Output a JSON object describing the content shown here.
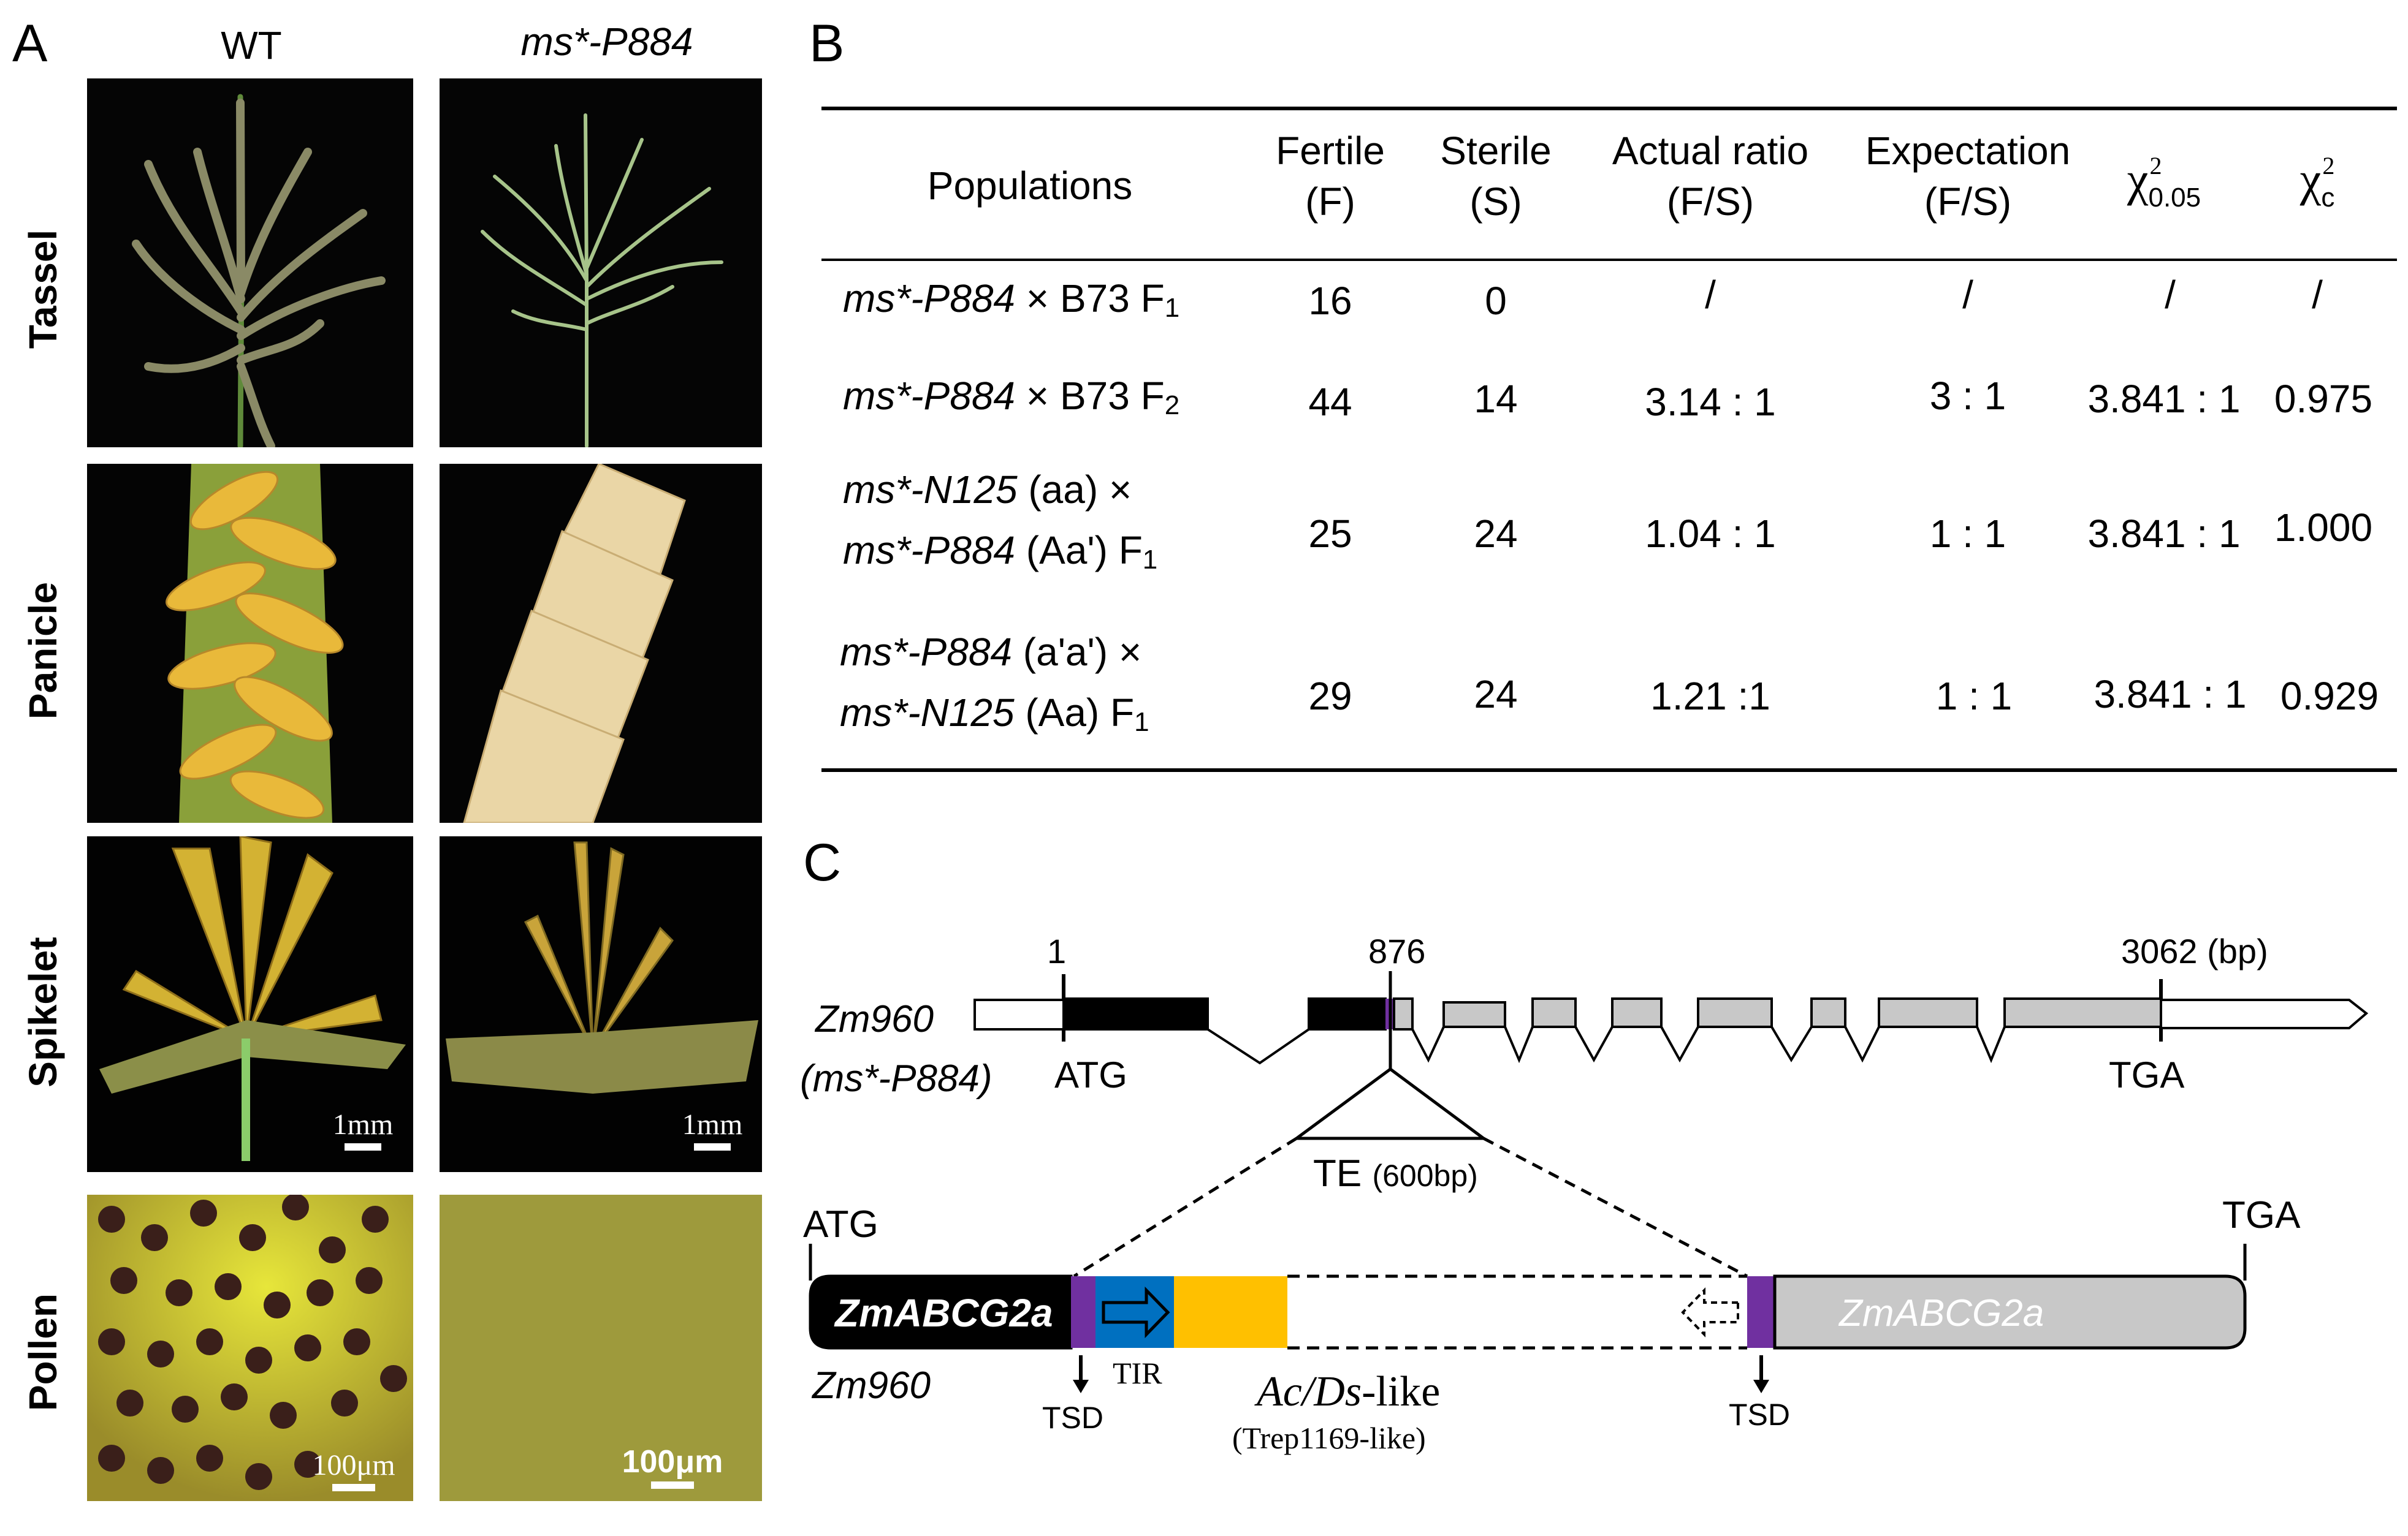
{
  "panel_a": {
    "letter": "A",
    "columns": [
      "WT",
      "ms*-P884"
    ],
    "rows": [
      "Tassel",
      "Panicle",
      "Spikelet",
      "Pollen"
    ],
    "scale_bars": {
      "spikelet_wt": "1mm",
      "spikelet_mut": "1mm",
      "pollen_wt": "100μm",
      "pollen_mut": "100μm"
    }
  },
  "panel_b": {
    "letter": "B",
    "headers": {
      "populations": "Populations",
      "fertile": [
        "Fertile",
        "(F)"
      ],
      "sterile": [
        "Sterile",
        "(S)"
      ],
      "actual": [
        "Actual ratio",
        "(F/S)"
      ],
      "expectation": [
        "Expectation",
        "(F/S)"
      ],
      "chi_crit": {
        "symbol": "χ",
        "sup": "2",
        "sub": "0.05"
      },
      "chi_c": {
        "symbol": "χ",
        "sup": "2",
        "sub": "c"
      }
    },
    "rows": [
      {
        "line1_italic": "ms*-P884",
        "line1_rest": "× B73 F",
        "line1_sub": "1",
        "line2_italic": "",
        "line2_rest": "",
        "line2_sub": "",
        "fertile": "16",
        "sterile": "0",
        "actual": "/",
        "expectation": "/",
        "chi_crit": "/",
        "chi_c": "/"
      },
      {
        "line1_italic": "ms*-P884",
        "line1_rest": "× B73 F",
        "line1_sub": "2",
        "line2_italic": "",
        "line2_rest": "",
        "line2_sub": "",
        "fertile": "44",
        "sterile": "14",
        "actual": "3.14 : 1",
        "expectation": "3 : 1",
        "chi_crit": "3.841 : 1",
        "chi_c": "0.975"
      },
      {
        "line1_italic": "ms*-N125",
        "line1_rest": "(aa)  ×",
        "line1_sub": "",
        "line2_italic": "ms*-P884",
        "line2_rest": "(Aa') F",
        "line2_sub": "1",
        "fertile": "25",
        "sterile": "24",
        "actual": "1.04 : 1",
        "expectation": "1 : 1",
        "chi_crit": "3.841 : 1",
        "chi_c": "1.000"
      },
      {
        "line1_italic": "ms*-P884",
        "line1_rest": "(a'a')  ×",
        "line1_sub": "",
        "line2_italic": "ms*-N125",
        "line2_rest": "(Aa)  F",
        "line2_sub": "1",
        "fertile": "29",
        "sterile": "24",
        "actual": "1.21 :1",
        "expectation": "1 : 1",
        "chi_crit": "3.841 : 1",
        "chi_c": "0.929"
      }
    ]
  },
  "panel_c": {
    "letter": "C",
    "gene_name": "Zm960",
    "gene_allele": "(ms*-P884)",
    "pos_start": "1",
    "pos_insert": "876",
    "pos_end": "3062",
    "pos_unit": "(bp)",
    "start_codon": "ATG",
    "stop_codon": "TGA",
    "te_label": "TE",
    "te_size": "(600bp)",
    "detail_atg": "ATG",
    "detail_tga": "TGA",
    "gene_left": "ZmABCG2a",
    "gene_right": "ZmABCG2a",
    "detail_gene": "Zm960",
    "tsd_left": "TSD",
    "tsd_right": "TSD",
    "tir": "TIR",
    "element_italic": "Ac/Ds",
    "element_rest": "-like",
    "element_family": "(Trep1169-like)",
    "colors": {
      "exon_coding": "#000000",
      "exon_utr": "#c8c8c8",
      "tsd": "#7030a0",
      "tir": "#0070c0",
      "element": "#ffc000"
    }
  }
}
